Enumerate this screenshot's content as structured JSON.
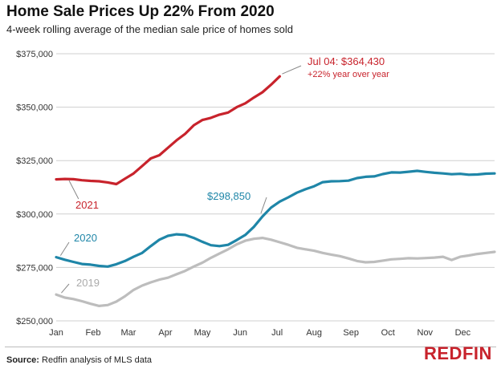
{
  "title": "Home Sale Prices Up 22% From 2020",
  "subtitle": "4-week rolling average of the median sale price of homes sold",
  "source_label": "Source:",
  "source_text": "Redfin analysis of MLS data",
  "logo_text": "REDFIN",
  "colors": {
    "s2021": "#c8232c",
    "s2020": "#1f86a8",
    "s2019": "#bdbdbd",
    "grid": "#cfcfcf",
    "logo": "#c8232c"
  },
  "chart_data": {
    "type": "line",
    "title": "Home Sale Prices Up 22% From 2020",
    "ylim": [
      250000,
      375000
    ],
    "y_ticks": [
      250000,
      275000,
      300000,
      325000,
      350000,
      375000
    ],
    "y_tick_labels": [
      "$250,000",
      "$275,000",
      "$300,000",
      "$325,000",
      "$350,000",
      "$375,000"
    ],
    "x_range": [
      1,
      52
    ],
    "x_ticks": [
      1,
      5.3,
      9.4,
      13.7,
      18,
      22.4,
      26.7,
      31,
      35.3,
      39.6,
      43.9,
      48.3
    ],
    "x_tick_labels": [
      "Jan",
      "Feb",
      "Mar",
      "Apr",
      "May",
      "Jun",
      "Jul",
      "Aug",
      "Sep",
      "Oct",
      "Nov",
      "Dec"
    ],
    "grid": "horizontal",
    "series": [
      {
        "name": "2021",
        "color_key": "s2021",
        "x": [
          1,
          2,
          3,
          4,
          5,
          6,
          7,
          8,
          9,
          10,
          11,
          12,
          13,
          14,
          15,
          16,
          17,
          18,
          19,
          20,
          21,
          22,
          23,
          24,
          25,
          26,
          27
        ],
        "values": [
          316200,
          316400,
          316300,
          315800,
          315500,
          315300,
          314800,
          314000,
          316500,
          319000,
          322500,
          326000,
          327500,
          331000,
          334500,
          337500,
          341500,
          344000,
          345000,
          346500,
          347500,
          350000,
          351800,
          354500,
          357000,
          360500,
          364430
        ]
      },
      {
        "name": "2020",
        "color_key": "s2020",
        "x": [
          1,
          2,
          3,
          4,
          5,
          6,
          7,
          8,
          9,
          10,
          11,
          12,
          13,
          14,
          15,
          16,
          17,
          18,
          19,
          20,
          21,
          22,
          23,
          24,
          25,
          26,
          27,
          28,
          29,
          30,
          31,
          32,
          33,
          34,
          35,
          36,
          37,
          38,
          39,
          40,
          41,
          42,
          43,
          44,
          45,
          46,
          47,
          48,
          49,
          50,
          51,
          52
        ],
        "values": [
          279800,
          278600,
          277600,
          276600,
          276300,
          275700,
          275400,
          276500,
          278000,
          280000,
          281800,
          285000,
          288000,
          289800,
          290500,
          290200,
          288800,
          287000,
          285400,
          285000,
          285600,
          287800,
          290200,
          294000,
          298850,
          303000,
          305800,
          307800,
          310000,
          311600,
          313000,
          314900,
          315300,
          315400,
          315600,
          316800,
          317400,
          317600,
          318700,
          319500,
          319400,
          319800,
          320200,
          319700,
          319300,
          319000,
          318600,
          318800,
          318400,
          318500,
          318900,
          319000
        ]
      },
      {
        "name": "2019",
        "color_key": "s2019",
        "x": [
          1,
          2,
          3,
          4,
          5,
          6,
          7,
          8,
          9,
          10,
          11,
          12,
          13,
          14,
          15,
          16,
          17,
          18,
          19,
          20,
          21,
          22,
          23,
          24,
          25,
          26,
          27,
          28,
          29,
          30,
          31,
          32,
          33,
          34,
          35,
          36,
          37,
          38,
          39,
          40,
          41,
          42,
          43,
          44,
          45,
          46,
          47,
          48,
          49,
          50,
          51,
          52
        ],
        "values": [
          262300,
          260900,
          260200,
          259200,
          258000,
          257000,
          257400,
          259000,
          261500,
          264500,
          266500,
          268000,
          269300,
          270200,
          271800,
          273400,
          275400,
          277200,
          279500,
          281500,
          283500,
          285800,
          287500,
          288400,
          288800,
          288000,
          286800,
          285600,
          284200,
          283500,
          282800,
          281800,
          281000,
          280300,
          279200,
          278000,
          277400,
          277600,
          278200,
          278800,
          279000,
          279300,
          279200,
          279400,
          279600,
          280000,
          278500,
          280000,
          280600,
          281300,
          281800,
          282300
        ]
      }
    ],
    "annotations": {
      "series_2021_label": "2021",
      "series_2020_label": "2020",
      "series_2019_label": "2019",
      "callout_2020_value": "$298,850",
      "callout_2021_line1": "Jul 04: $364,430",
      "callout_2021_line2": "+22% year over year"
    }
  }
}
